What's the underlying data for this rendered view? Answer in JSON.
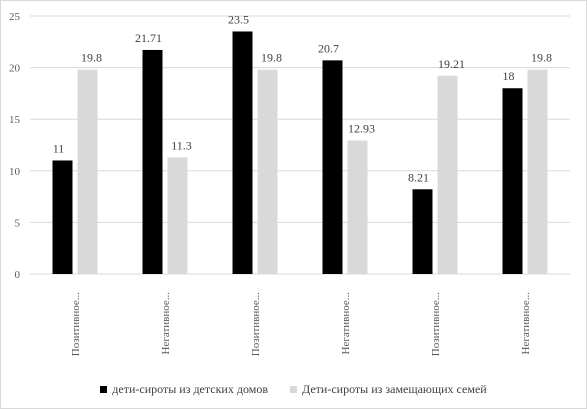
{
  "chart_data": {
    "type": "bar",
    "title": "",
    "xlabel": "",
    "ylabel": "",
    "ylim": [
      0,
      25
    ],
    "yticks": [
      0,
      5,
      10,
      15,
      20,
      25
    ],
    "grid": true,
    "legend_position": "bottom",
    "categories": [
      "Позитивное...",
      "Негативное...",
      "Позитивное...",
      "Негативное...",
      "Позитивное...",
      "Негативное..."
    ],
    "series": [
      {
        "name": "дети-сироты из детских домов",
        "color": "#000000",
        "values": [
          11,
          21.71,
          23.5,
          20.7,
          8.21,
          18
        ],
        "labels": [
          "11",
          "21.71",
          "23.5",
          "20.7",
          "8.21",
          "18"
        ]
      },
      {
        "name": "Дети-сироты из замещающих семей",
        "color": "#d9d9d9",
        "values": [
          19.8,
          11.3,
          19.8,
          12.93,
          19.21,
          19.8
        ],
        "labels": [
          "19.8",
          "11.3",
          "19.8",
          "12.93",
          "19.21",
          "19.8"
        ]
      }
    ]
  }
}
